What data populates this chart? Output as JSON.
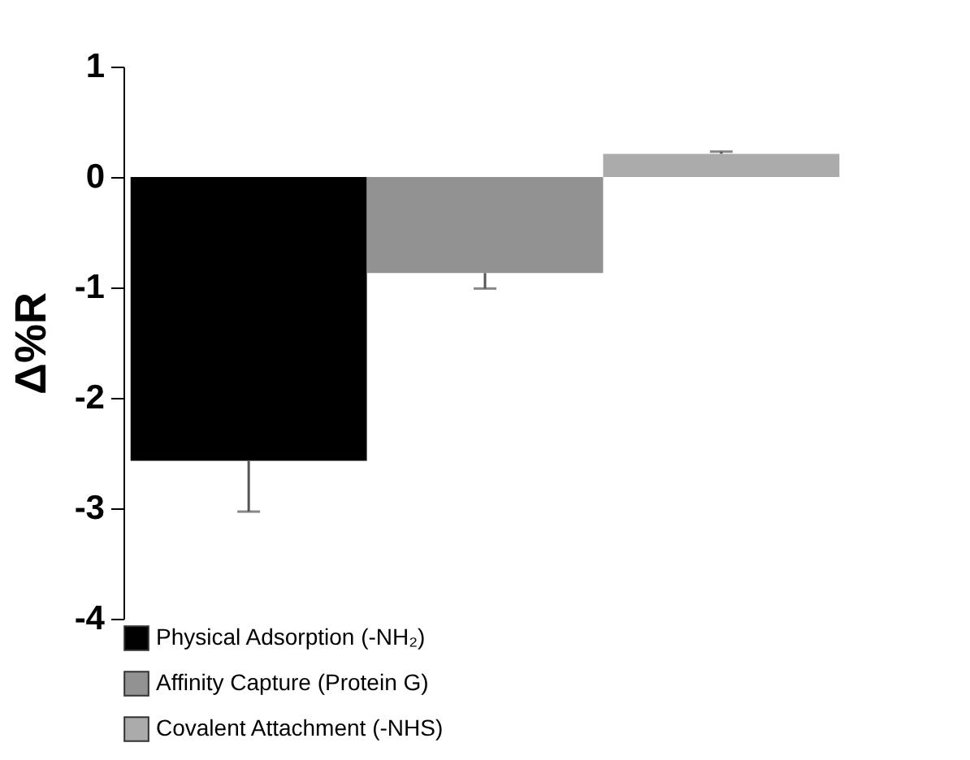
{
  "chart_data": {
    "type": "bar",
    "ylabel": "Δ%R",
    "categories": [
      null
    ],
    "series": [
      {
        "name": "Physical Adsorption (-NH₂)",
        "color": "#000000",
        "values": [
          -2.57
        ],
        "errors": [
          [
            -3.03,
            -2.57
          ]
        ]
      },
      {
        "name": "Affinity Capture (Protein G)",
        "color": "#929292",
        "values": [
          -0.87
        ],
        "errors": [
          [
            -1.01,
            -0.87
          ]
        ]
      },
      {
        "name": "Covalent Attachment (-NHS)",
        "color": "#ababab",
        "values": [
          0.21
        ],
        "errors": [
          [
            0.21,
            0.23
          ]
        ]
      }
    ],
    "ylim": [
      -4,
      1
    ],
    "yticks": [
      -4,
      -3,
      -2,
      -1,
      0,
      1
    ],
    "grid": false,
    "legend": "bottom"
  }
}
